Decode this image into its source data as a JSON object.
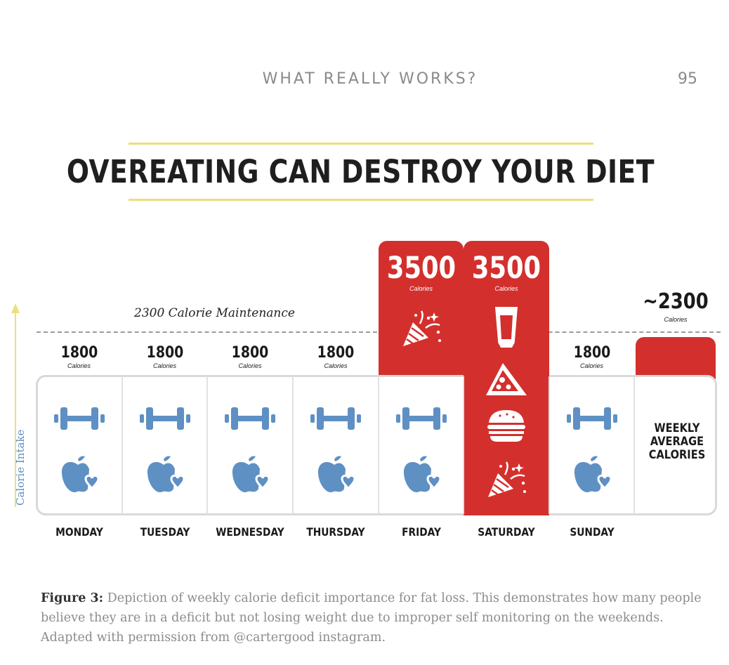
{
  "header": {
    "running_title": "WHAT REALLY WORKS?",
    "page_number": "95"
  },
  "title": "OVEREATING CAN DESTROY YOUR DIET",
  "maintenance_label": "2300 Calorie Maintenance",
  "axis_label": "Calorie Intake",
  "accent_colors": {
    "red": "#d3302d",
    "blue": "#5e90c4",
    "yellow": "#ece07a"
  },
  "chart_data": {
    "type": "bar",
    "categories": [
      "MONDAY",
      "TUESDAY",
      "WEDNESDAY",
      "THURSDAY",
      "FRIDAY",
      "SATURDAY",
      "SUNDAY",
      "WEEKLY AVERAGE CALORIES"
    ],
    "values": [
      1800,
      1800,
      1800,
      1800,
      3500,
      3500,
      1800,
      2300
    ],
    "value_labels": [
      "1800",
      "1800",
      "1800",
      "1800",
      "3500",
      "3500",
      "1800",
      "~2300"
    ],
    "unit": "Calories",
    "reference_line": {
      "value": 2300,
      "label": "2300 Calorie Maintenance"
    },
    "ylabel": "Calorie Intake",
    "day_icons": [
      [
        "dumbbell-icon",
        "apple-heart-icon"
      ],
      [
        "dumbbell-icon",
        "apple-heart-icon"
      ],
      [
        "dumbbell-icon",
        "apple-heart-icon"
      ],
      [
        "dumbbell-icon",
        "apple-heart-icon"
      ],
      [
        "dumbbell-icon",
        "apple-heart-icon",
        "party-popper-icon"
      ],
      [
        "beer-icon",
        "pizza-icon",
        "burger-icon",
        "party-popper-icon"
      ],
      [
        "dumbbell-icon",
        "apple-heart-icon"
      ],
      []
    ]
  },
  "weekly_label_lines": [
    "WEEKLY",
    "AVERAGE",
    "CALORIES"
  ],
  "caption": {
    "label": "Figure 3:",
    "text": " Depiction of weekly calorie deficit importance for fat loss. This demonstrates how many people believe they are in a deficit but not losing weight due to improper self monitoring on the weekends. Adapted with permission from @cartergood instagram."
  }
}
